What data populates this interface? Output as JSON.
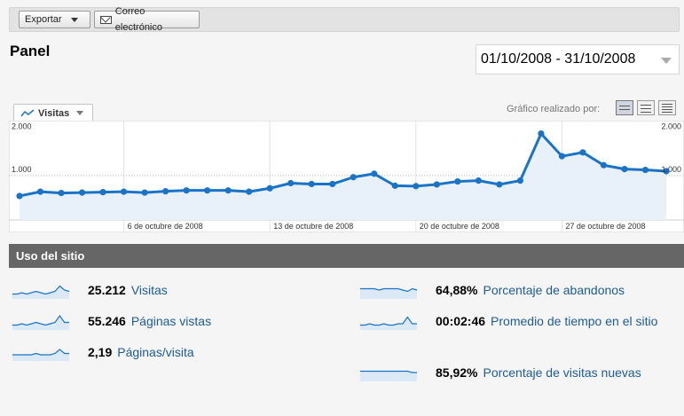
{
  "toolbar": {
    "export_label": "Exportar",
    "email_label": "Correo electrónico"
  },
  "page": {
    "title": "Panel",
    "date_range": "01/10/2008 - 31/10/2008"
  },
  "graph": {
    "metric_selector": "Visitas",
    "graph_by_label": "Gráfico realizado por:"
  },
  "chart_data": {
    "type": "area",
    "series": [
      {
        "values": [
          520,
          620,
          590,
          600,
          610,
          620,
          600,
          630,
          650,
          650,
          650,
          620,
          700,
          820,
          800,
          800,
          960,
          1040,
          760,
          750,
          790,
          860,
          880,
          790,
          880,
          1980,
          1450,
          1540,
          1240,
          1150,
          1130,
          1100
        ]
      }
    ],
    "x_tick_labels": [
      "6 de octubre de 2008",
      "13 de octubre de 2008",
      "20 de octubre de 2008",
      "27 de octubre de 2008"
    ],
    "y_tick_labels": [
      "2.000",
      "1.000"
    ],
    "ylim": [
      0,
      2200
    ],
    "grid": true,
    "color": "#1a73c6",
    "fill": "#e8f1fa"
  },
  "site_usage": {
    "title": "Uso del sitio",
    "stats": [
      {
        "value": "25.212",
        "label": "Visitas",
        "spark": [
          3,
          3,
          4,
          3,
          4,
          5,
          4,
          3,
          4,
          5,
          9,
          6,
          5
        ]
      },
      {
        "value": "55.246",
        "label": "Páginas vistas",
        "spark": [
          3,
          3,
          4,
          3,
          4,
          5,
          4,
          3,
          4,
          5,
          10,
          5,
          5
        ]
      },
      {
        "value": "2,19",
        "label": "Páginas/visita",
        "spark": [
          4,
          4,
          4,
          4,
          4,
          5,
          4,
          4,
          4,
          5,
          8,
          5,
          5
        ]
      },
      {
        "value": "64,88%",
        "label": "Porcentaje de abandonos",
        "spark": [
          7,
          7,
          7,
          7,
          6,
          7,
          7,
          7,
          7,
          6,
          5,
          7,
          6
        ]
      },
      {
        "value": "00:02:46",
        "label": "Promedio de tiempo en el sitio",
        "spark": [
          3,
          3,
          4,
          3,
          3,
          4,
          3,
          3,
          4,
          4,
          9,
          4,
          4
        ]
      },
      {
        "value": "85,92%",
        "label": "Porcentaje de visitas nuevas",
        "spark": [
          7,
          7,
          7,
          7,
          7,
          7,
          7,
          7,
          7,
          7,
          7,
          6,
          6
        ]
      }
    ]
  }
}
